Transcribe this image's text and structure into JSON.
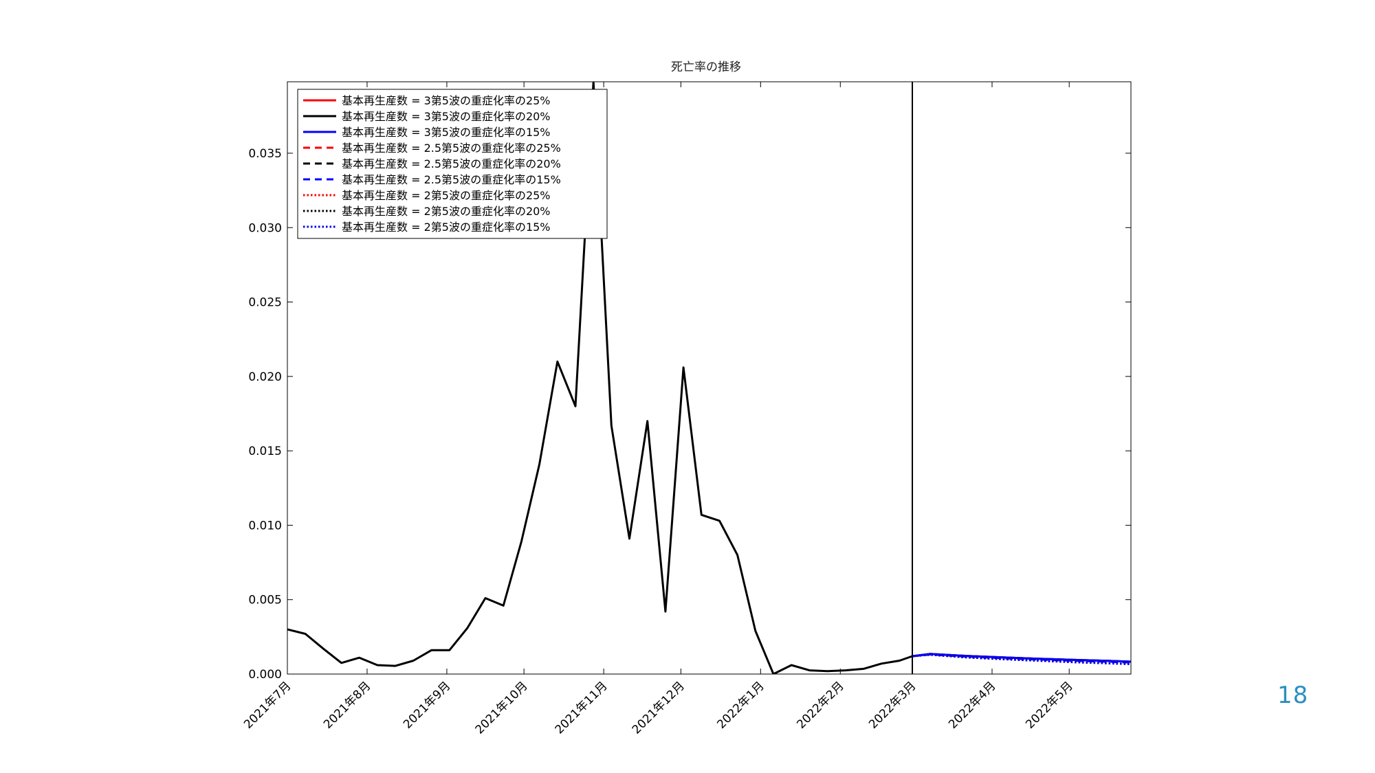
{
  "page": {
    "number": "18"
  },
  "colors": {
    "red": "#ff0000",
    "black": "#000000",
    "blue": "#0000ff",
    "page_number": "#2b8fc0"
  },
  "chart_data": {
    "type": "line",
    "title": "死亡率の推移",
    "xlabel": "",
    "ylabel": "",
    "ylim": [
      0,
      0.0398
    ],
    "yticks": [
      "0.000",
      "0.005",
      "0.010",
      "0.015",
      "0.020",
      "0.025",
      "0.030",
      "0.035"
    ],
    "xlim": [
      "2021-07-01",
      "2022-05-25"
    ],
    "xticks": [
      {
        "date": "2021-07-01",
        "label": "2021年7月"
      },
      {
        "date": "2021-08-01",
        "label": "2021年8月"
      },
      {
        "date": "2021-09-01",
        "label": "2021年9月"
      },
      {
        "date": "2021-10-01",
        "label": "2021年10月"
      },
      {
        "date": "2021-11-01",
        "label": "2021年11月"
      },
      {
        "date": "2021-12-01",
        "label": "2021年12月"
      },
      {
        "date": "2022-01-01",
        "label": "2022年1月"
      },
      {
        "date": "2022-02-01",
        "label": "2022年2月"
      },
      {
        "date": "2022-03-01",
        "label": "2022年3月"
      },
      {
        "date": "2022-04-01",
        "label": "2022年4月"
      },
      {
        "date": "2022-05-01",
        "label": "2022年5月"
      }
    ],
    "vline_date": "2022-03-01",
    "legend_position": "top-left",
    "observed": {
      "x": [
        "2021-07-01",
        "2021-07-08",
        "2021-07-15",
        "2021-07-22",
        "2021-07-29",
        "2021-08-05",
        "2021-08-12",
        "2021-08-19",
        "2021-08-26",
        "2021-09-02",
        "2021-09-09",
        "2021-09-16",
        "2021-09-23",
        "2021-09-30",
        "2021-10-07",
        "2021-10-14",
        "2021-10-21",
        "2021-10-28",
        "2021-11-04",
        "2021-11-11",
        "2021-11-18",
        "2021-11-25",
        "2021-12-02",
        "2021-12-09",
        "2021-12-16",
        "2021-12-23",
        "2021-12-30",
        "2022-01-06",
        "2022-01-13",
        "2022-01-20",
        "2022-01-27",
        "2022-02-03",
        "2022-02-10",
        "2022-02-17",
        "2022-02-24",
        "2022-03-01"
      ],
      "y": [
        0.003,
        0.0027,
        0.0017,
        0.00075,
        0.0011,
        0.0006,
        0.00055,
        0.0009,
        0.0016,
        0.0016,
        0.0031,
        0.0051,
        0.0046,
        0.0089,
        0.0141,
        0.021,
        0.018,
        0.0398,
        0.0167,
        0.0091,
        0.017,
        0.0042,
        0.0206,
        0.0107,
        0.0103,
        0.008,
        0.0029,
        0.0,
        0.0006,
        0.00025,
        0.0002,
        0.00025,
        0.00035,
        0.0007,
        0.0009,
        0.0012
      ]
    },
    "series": [
      {
        "name": "基本再生産数 = 3第5波の重症化率の25%",
        "color": "red",
        "style": "solid",
        "x": [
          "2022-03-01",
          "2022-03-08",
          "2022-03-22",
          "2022-04-05",
          "2022-04-19",
          "2022-05-03",
          "2022-05-17",
          "2022-05-25"
        ],
        "y": [
          0.0012,
          0.00135,
          0.00122,
          0.00112,
          0.00103,
          0.00095,
          0.00088,
          0.00083
        ]
      },
      {
        "name": "基本再生産数 = 3第5波の重症化率の20%",
        "color": "black",
        "style": "solid",
        "x": [
          "2022-03-01",
          "2022-03-08",
          "2022-03-22",
          "2022-04-05",
          "2022-04-19",
          "2022-05-03",
          "2022-05-17",
          "2022-05-25"
        ],
        "y": [
          0.0012,
          0.00135,
          0.00122,
          0.00112,
          0.00103,
          0.00095,
          0.00088,
          0.00083
        ]
      },
      {
        "name": "基本再生産数 = 3第5波の重症化率の15%",
        "color": "blue",
        "style": "solid",
        "x": [
          "2022-03-01",
          "2022-03-08",
          "2022-03-22",
          "2022-04-05",
          "2022-04-19",
          "2022-05-03",
          "2022-05-17",
          "2022-05-25"
        ],
        "y": [
          0.0012,
          0.00135,
          0.00122,
          0.00112,
          0.00103,
          0.00095,
          0.00088,
          0.00083
        ]
      },
      {
        "name": "基本再生産数 = 2.5第5波の重症化率の25%",
        "color": "red",
        "style": "dashed",
        "x": [
          "2022-03-01",
          "2022-03-08",
          "2022-03-22",
          "2022-04-05",
          "2022-04-19",
          "2022-05-03",
          "2022-05-17",
          "2022-05-25"
        ],
        "y": [
          0.0012,
          0.00132,
          0.00118,
          0.00107,
          0.00098,
          0.0009,
          0.00083,
          0.00078
        ]
      },
      {
        "name": "基本再生産数 = 2.5第5波の重症化率の20%",
        "color": "black",
        "style": "dashed",
        "x": [
          "2022-03-01",
          "2022-03-08",
          "2022-03-22",
          "2022-04-05",
          "2022-04-19",
          "2022-05-03",
          "2022-05-17",
          "2022-05-25"
        ],
        "y": [
          0.0012,
          0.00132,
          0.00118,
          0.00107,
          0.00098,
          0.0009,
          0.00083,
          0.00078
        ]
      },
      {
        "name": "基本再生産数 = 2.5第5波の重症化率の15%",
        "color": "blue",
        "style": "dashed",
        "x": [
          "2022-03-01",
          "2022-03-08",
          "2022-03-22",
          "2022-04-05",
          "2022-04-19",
          "2022-05-03",
          "2022-05-17",
          "2022-05-25"
        ],
        "y": [
          0.0012,
          0.00132,
          0.00118,
          0.00107,
          0.00098,
          0.0009,
          0.00083,
          0.00078
        ]
      },
      {
        "name": "基本再生産数 = 2第5波の重症化率の25%",
        "color": "red",
        "style": "dotted",
        "x": [
          "2022-03-01",
          "2022-03-08",
          "2022-03-22",
          "2022-04-05",
          "2022-04-19",
          "2022-05-03",
          "2022-05-17",
          "2022-05-25"
        ],
        "y": [
          0.0012,
          0.0013,
          0.00112,
          0.001,
          0.0009,
          0.0008,
          0.00072,
          0.00067
        ]
      },
      {
        "name": "基本再生産数 = 2第5波の重症化率の20%",
        "color": "black",
        "style": "dotted",
        "x": [
          "2022-03-01",
          "2022-03-08",
          "2022-03-22",
          "2022-04-05",
          "2022-04-19",
          "2022-05-03",
          "2022-05-17",
          "2022-05-25"
        ],
        "y": [
          0.0012,
          0.0013,
          0.00112,
          0.001,
          0.0009,
          0.0008,
          0.00072,
          0.00067
        ]
      },
      {
        "name": "基本再生産数 = 2第5波の重症化率の15%",
        "color": "blue",
        "style": "dotted",
        "x": [
          "2022-03-01",
          "2022-03-08",
          "2022-03-22",
          "2022-04-05",
          "2022-04-19",
          "2022-05-03",
          "2022-05-17",
          "2022-05-25"
        ],
        "y": [
          0.0012,
          0.0013,
          0.00112,
          0.001,
          0.0009,
          0.0008,
          0.00072,
          0.00067
        ]
      }
    ]
  }
}
